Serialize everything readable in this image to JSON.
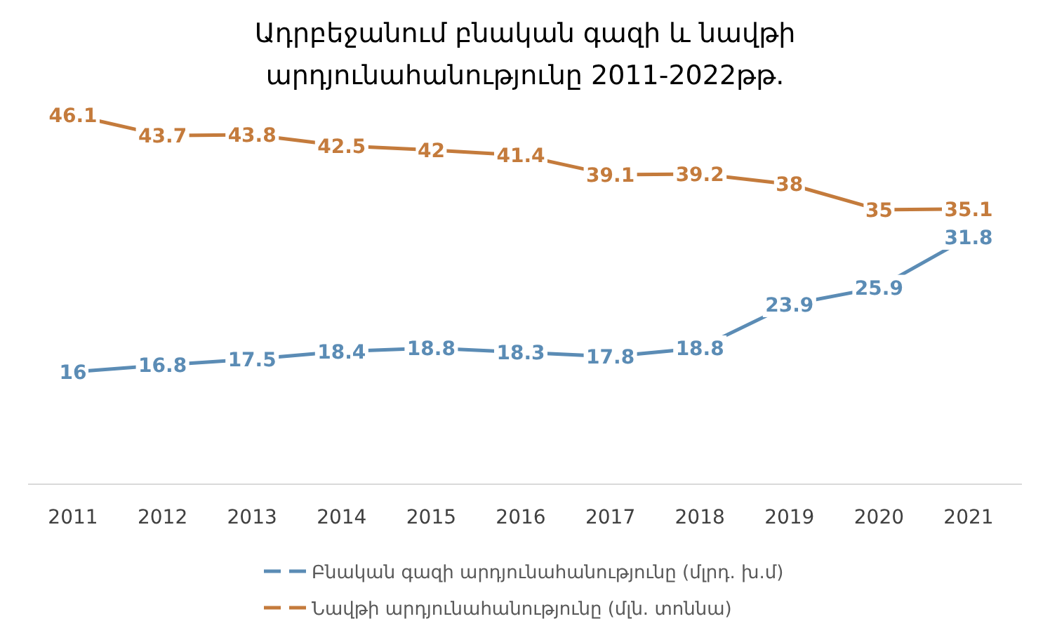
{
  "chart_data": {
    "type": "line",
    "title": "Ադրբեջանում բնական գազի և նավթի արդյունահանությունը 2011-2022թթ.",
    "categories": [
      "2011",
      "2012",
      "2013",
      "2014",
      "2015",
      "2016",
      "2017",
      "2018",
      "2019",
      "2020",
      "2021"
    ],
    "series": [
      {
        "name": "Բնական գազի արդյունահանությունը (մլրդ. խ.մ)",
        "color": "#5b8cb5",
        "values": [
          16,
          16.8,
          17.5,
          18.4,
          18.8,
          18.3,
          17.8,
          18.8,
          23.9,
          25.9,
          31.8
        ]
      },
      {
        "name": "Նավթի արդյունահանությունը (մլն. տոննա)",
        "color": "#c47b3c",
        "values": [
          46.1,
          43.7,
          43.8,
          42.5,
          42,
          41.4,
          39.1,
          39.2,
          38,
          35,
          35.1
        ]
      }
    ],
    "data_labels": true,
    "legend": "bottom",
    "line_style": "solid"
  }
}
